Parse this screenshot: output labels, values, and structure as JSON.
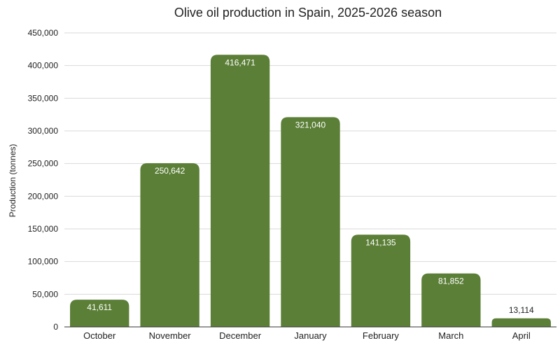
{
  "chart_data": {
    "type": "bar",
    "title": "Olive oil production in Spain, 2025-2026 season",
    "xlabel": "",
    "ylabel": "Production (tonnes)",
    "categories": [
      "October",
      "November",
      "December",
      "January",
      "February",
      "March",
      "April"
    ],
    "values": [
      41611,
      250642,
      416471,
      321040,
      141135,
      81852,
      13114
    ],
    "data_labels": [
      "41,611",
      "250,642",
      "416,471",
      "321,040",
      "141,135",
      "81,852",
      "13,114"
    ],
    "ylim": [
      0,
      450000
    ],
    "yticks": [
      0,
      50000,
      100000,
      150000,
      200000,
      250000,
      300000,
      350000,
      400000,
      450000
    ],
    "ytick_labels": [
      "0",
      "50,000",
      "100,000",
      "150,000",
      "200,000",
      "250,000",
      "300,000",
      "350,000",
      "400,000",
      "450,000"
    ],
    "grid": true,
    "colors": {
      "bar": "#5b7f37",
      "label_inside": "#ffffff",
      "label_outside": "#222222"
    }
  }
}
